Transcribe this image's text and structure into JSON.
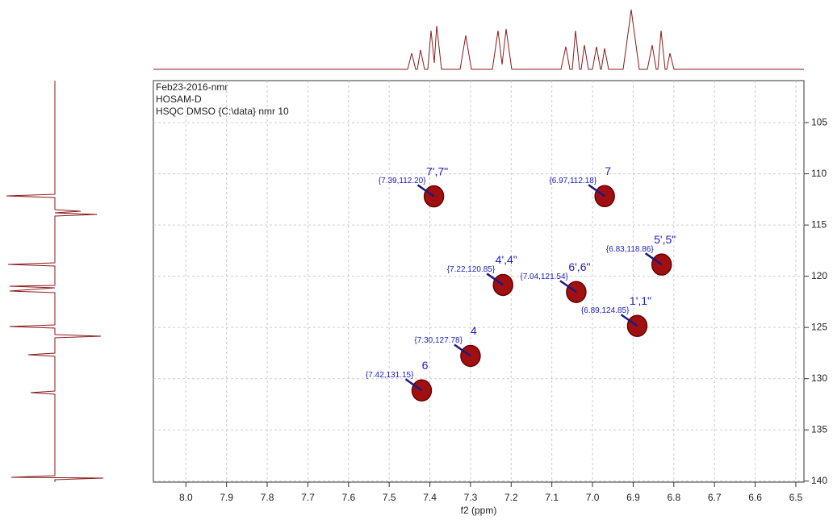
{
  "chart_data": {
    "type": "scatter",
    "header": [
      "Feb23-2016-nmr",
      "HOSAM-D",
      "HSQC DMSO {C:\\data} nmr 10"
    ],
    "x_label": "f2 (ppm)",
    "x": [
      7.39,
      6.97,
      6.83,
      7.22,
      7.04,
      6.89,
      7.3,
      7.42
    ],
    "values": [
      112.2,
      112.18,
      118.86,
      120.85,
      121.54,
      124.85,
      127.78,
      131.15
    ],
    "value_labels": [
      "{7.39,112.20}",
      "{6.97,112.18}",
      "{6.83,118.86}",
      "{7.22,120.85}",
      "{7.04,121.54}",
      "{6.89,124.85}",
      "{7.30,127.78}",
      "{7.42,131.15}"
    ],
    "assignments": [
      "7',7\"",
      "7",
      "5',5\"",
      "4',4\"",
      "6',6\"",
      "1',1\"",
      "4",
      "6"
    ],
    "color": "#a01010",
    "label_color": "#2020c0",
    "xlim": [
      8.08,
      6.48
    ],
    "xticks": [
      {
        "value": 8,
        "label": "8.0"
      },
      7.9,
      7.8,
      7.7,
      7.6,
      7.5,
      7.4,
      7.3,
      7.2,
      7.1,
      {
        "value": 7,
        "label": "7.0"
      },
      6.9,
      6.8,
      6.7,
      6.6,
      6.5
    ],
    "ylim": [
      100.9,
      140.1
    ],
    "yticks": [
      105,
      110,
      115,
      120,
      125,
      130,
      135,
      140
    ],
    "grid": true
  }
}
